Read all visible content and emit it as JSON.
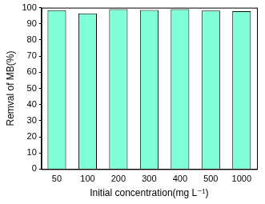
{
  "chart_data": {
    "type": "bar",
    "x_label": "Initial concentration(mg L⁻¹)",
    "y_label": "Remval of MB(%)",
    "categories": [
      "50",
      "100",
      "200",
      "300",
      "400",
      "500",
      "1000"
    ],
    "values": [
      98.5,
      96.5,
      99,
      98.6,
      99,
      98.2,
      97.8
    ],
    "color": "#80ffd8",
    "ylim": [
      0,
      100
    ],
    "yticks": [
      0,
      10,
      20,
      30,
      40,
      50,
      60,
      70,
      80,
      90,
      100
    ],
    "grid": false
  }
}
